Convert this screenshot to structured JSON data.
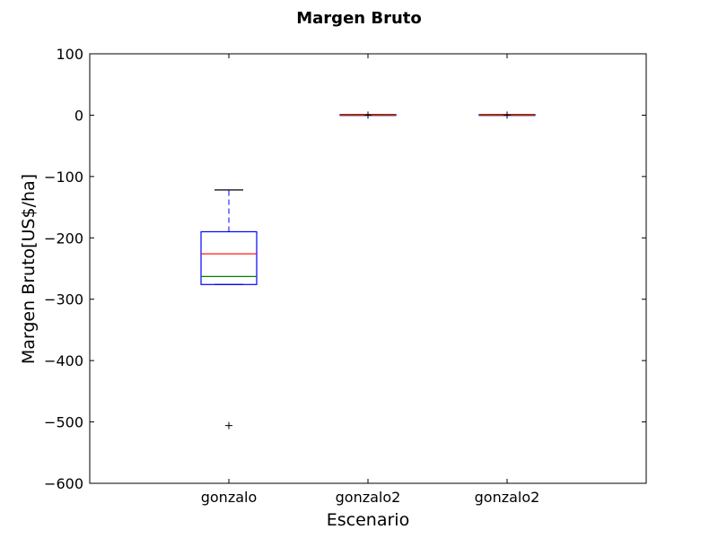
{
  "chart_data": {
    "type": "box",
    "title": "Margen Bruto",
    "xlabel": "Escenario",
    "ylabel": "Margen Bruto[US$/ha]",
    "ylim": [
      -600,
      100
    ],
    "yticks": [
      100,
      0,
      -100,
      -200,
      -300,
      -400,
      -500,
      -600
    ],
    "ytick_labels": [
      "100",
      "0",
      "−100",
      "−200",
      "−300",
      "−400",
      "−500",
      "−600"
    ],
    "categories": [
      "gonzalo",
      "gonzalo2",
      "gonzalo2"
    ],
    "boxes": [
      {
        "label": "gonzalo",
        "whisker_low": -276,
        "q1": -276,
        "median": -226,
        "mean": -263,
        "q3": -190,
        "whisker_high": -122,
        "outliers": [
          -506
        ]
      },
      {
        "label": "gonzalo2",
        "whisker_low": 0,
        "q1": 0,
        "median": 1,
        "mean": 0,
        "q3": 1,
        "whisker_high": 1,
        "outliers": [
          0
        ]
      },
      {
        "label": "gonzalo2",
        "whisker_low": 0,
        "q1": 0,
        "median": 1,
        "mean": 0,
        "q3": 1,
        "whisker_high": 1,
        "outliers": [
          0
        ]
      }
    ],
    "colors": {
      "box": "#0000ff",
      "median": "#ff0000",
      "mean": "#008000",
      "whisker": "#0000ff",
      "cap": "#000000",
      "flier": "#000000"
    },
    "grid": false
  }
}
